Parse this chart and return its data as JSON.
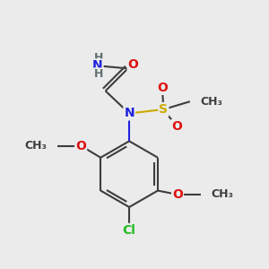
{
  "background_color": "#ebebeb",
  "bond_color": "#3d3d3d",
  "N_color": "#2020dd",
  "O_color": "#dd1111",
  "S_color": "#ccaa00",
  "Cl_color": "#22bb22",
  "C_color": "#3d3d3d",
  "fig_size": [
    3.0,
    3.0
  ],
  "dpi": 100,
  "xlim": [
    0,
    10
  ],
  "ylim": [
    0,
    10
  ]
}
